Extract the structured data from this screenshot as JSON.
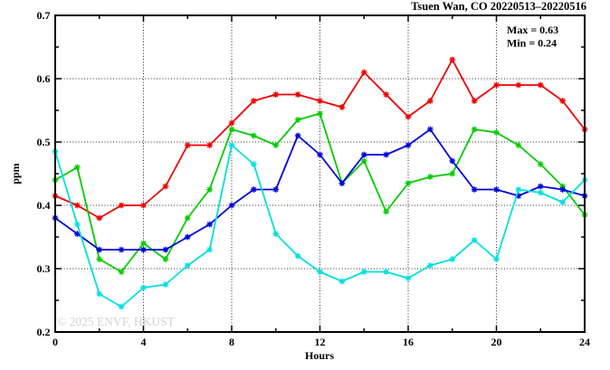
{
  "figure": {
    "title": "Tsuen Wan, CO 20220513–20220516",
    "max_label": "Max = 0.63",
    "min_label": "Min = 0.24",
    "watermark": "© 2025  ENVF, HKUST",
    "xlabel": "Hours",
    "ylabel": "ppm"
  },
  "chart_data": {
    "type": "line",
    "title": "Tsuen Wan, CO 20220513–20220516",
    "xlabel": "Hours",
    "ylabel": "ppm",
    "xlim": [
      0,
      24
    ],
    "ylim": [
      0.2,
      0.7
    ],
    "x_major_ticks": [
      0,
      4,
      8,
      12,
      16,
      20,
      24
    ],
    "x_minor_ticks": [
      2,
      6,
      10,
      14,
      18,
      22
    ],
    "y_major_ticks": [
      0.2,
      0.3,
      0.4,
      0.5,
      0.6,
      0.7
    ],
    "y_minor_ticks": [
      0.25,
      0.35,
      0.45,
      0.55,
      0.65
    ],
    "grid_x": [
      4,
      8,
      12,
      16,
      20
    ],
    "grid_y": [
      0.3,
      0.4,
      0.5,
      0.6
    ],
    "legend": "none",
    "marker": "asterisk",
    "annotations": {
      "max": 0.63,
      "min": 0.24
    },
    "x": [
      0,
      1,
      2,
      3,
      4,
      5,
      6,
      7,
      8,
      9,
      10,
      11,
      12,
      13,
      14,
      15,
      16,
      17,
      18,
      19,
      20,
      21,
      22,
      23,
      24
    ],
    "series": [
      {
        "name": "red",
        "color": "#ee0000",
        "values": [
          0.415,
          0.4,
          0.38,
          0.4,
          0.4,
          0.43,
          0.495,
          0.495,
          0.53,
          0.565,
          0.575,
          0.575,
          0.565,
          0.555,
          0.61,
          0.575,
          0.54,
          0.565,
          0.63,
          0.565,
          0.59,
          0.59,
          0.59,
          0.565,
          0.52
        ]
      },
      {
        "name": "green",
        "color": "#00cc00",
        "values": [
          0.44,
          0.46,
          0.315,
          0.295,
          0.34,
          0.315,
          0.38,
          0.425,
          0.52,
          0.51,
          0.495,
          0.535,
          0.545,
          0.435,
          0.47,
          0.39,
          0.435,
          0.445,
          0.45,
          0.52,
          0.515,
          0.495,
          0.465,
          0.43,
          0.385
        ]
      },
      {
        "name": "blue",
        "color": "#0000dd",
        "values": [
          0.38,
          0.355,
          0.33,
          0.33,
          0.33,
          0.33,
          0.35,
          0.37,
          0.4,
          0.425,
          0.425,
          0.51,
          0.48,
          0.435,
          0.48,
          0.48,
          0.495,
          0.52,
          0.47,
          0.425,
          0.425,
          0.415,
          0.43,
          0.425,
          0.415
        ]
      },
      {
        "name": "cyan",
        "color": "#00dfdf",
        "values": [
          0.485,
          0.37,
          0.26,
          0.24,
          0.27,
          0.275,
          0.305,
          0.33,
          0.495,
          0.465,
          0.355,
          0.32,
          0.295,
          0.28,
          0.295,
          0.295,
          0.285,
          0.305,
          0.315,
          0.345,
          0.315,
          0.425,
          0.42,
          0.405,
          0.44
        ]
      }
    ]
  }
}
